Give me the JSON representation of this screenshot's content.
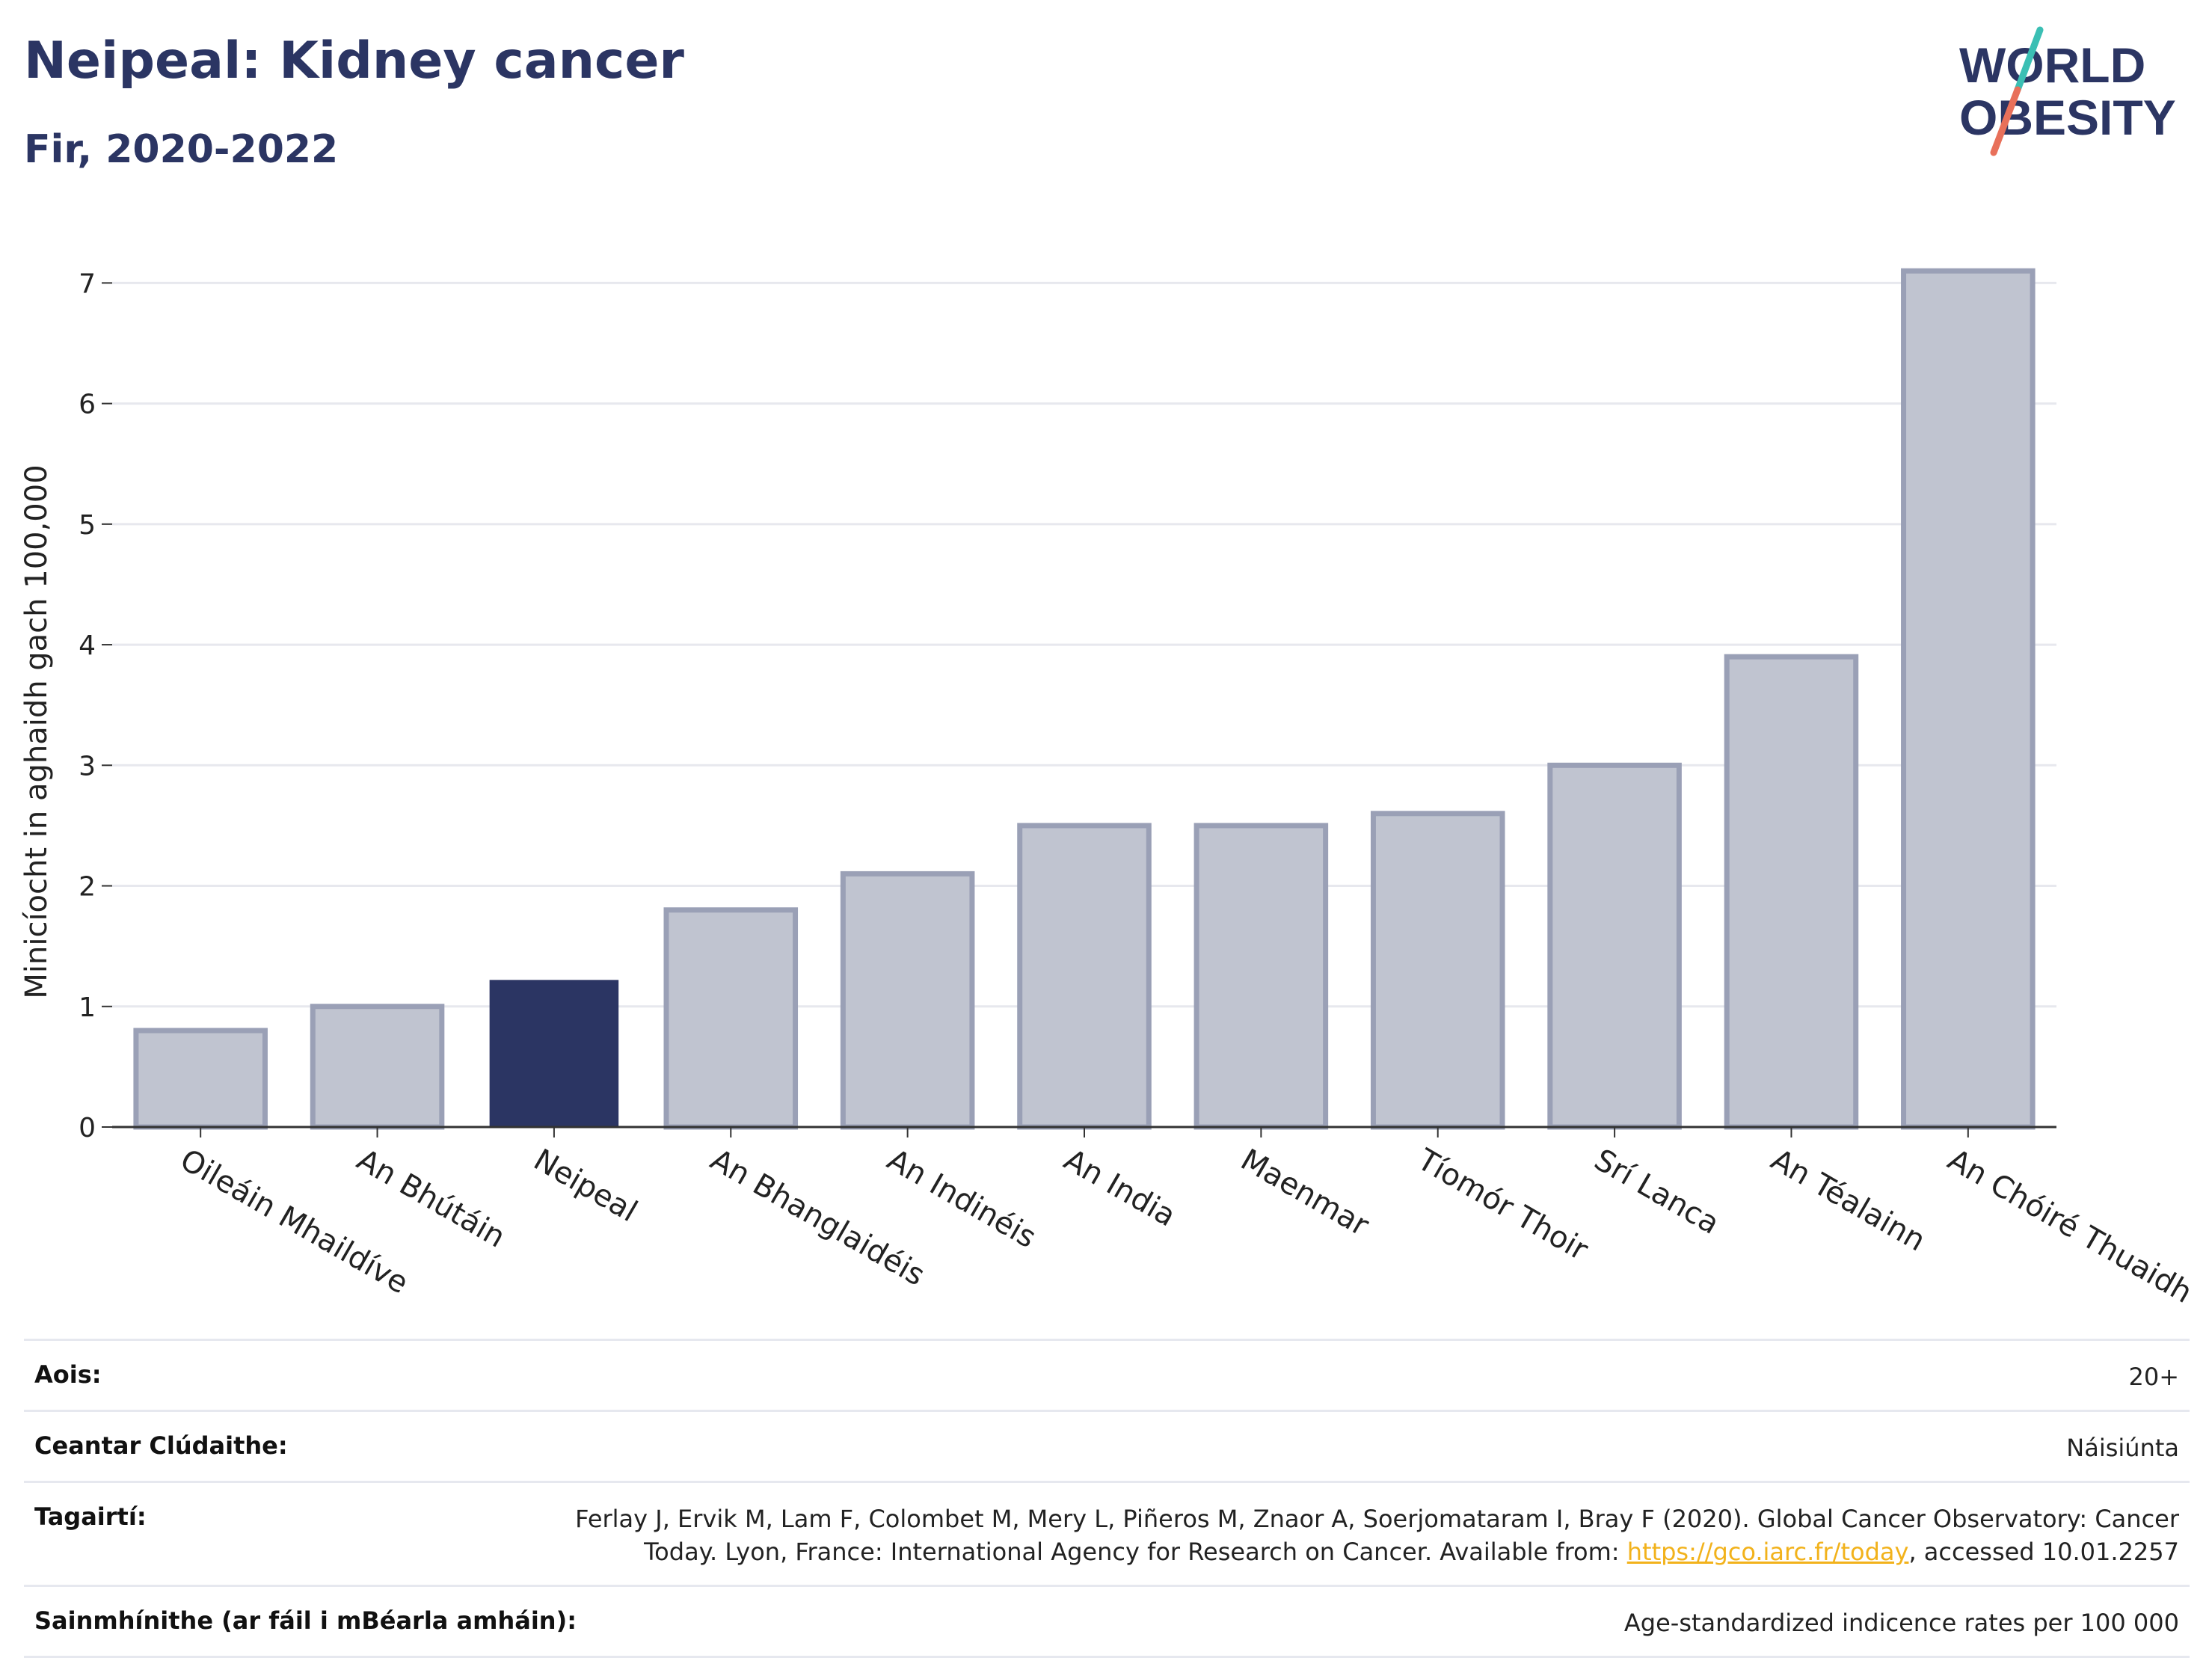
{
  "header": {
    "title": "Neipeal: Kidney cancer",
    "subtitle": "Fir, 2020-2022"
  },
  "logo": {
    "line1": "WORLD",
    "line2": "OBESITY",
    "colors": {
      "text": "#2b3563",
      "slash_top": "#3bbfb4",
      "slash_bottom": "#e8705a"
    }
  },
  "colors": {
    "bar": "#c0c4d0",
    "bar_border": "#9aa0b6",
    "highlight": "#2b3563",
    "grid": "#e7e8ee",
    "axis": "#333333"
  },
  "chart_data": {
    "type": "bar",
    "title": "",
    "xlabel": "",
    "ylabel": "Minicíocht in aghaidh gach 100,000",
    "ylim": [
      0,
      7.3
    ],
    "yticks": [
      0,
      1,
      2,
      3,
      4,
      5,
      6,
      7
    ],
    "grid": true,
    "categories": [
      "Oileáin Mhaildíve",
      "An Bhútáin",
      "Neipeal",
      "An Bhanglaidéis",
      "An Indinéis",
      "An India",
      "Maenmar",
      "Tíomór Thoir",
      "Srí Lanca",
      "An Téalainn",
      "An Chóiré Thuaidh"
    ],
    "values": [
      0.8,
      1.0,
      1.22,
      1.8,
      2.1,
      2.5,
      2.5,
      2.6,
      3.0,
      3.9,
      7.1
    ],
    "highlight_category": "Neipeal"
  },
  "meta": {
    "age_label": "Aois:",
    "age_value": "20+",
    "coverage_label": "Ceantar Clúdaithe:",
    "coverage_value": "Náisiúnta",
    "refs_label": "Tagairtí:",
    "refs_line1": "Ferlay J, Ervik M, Lam F, Colombet M, Mery L, Piñeros M, Znaor A, Soerjomataram I, Bray F (2020). Global Cancer Observatory: Cancer",
    "refs_line2_pre": "Today. Lyon, France: International Agency for Research on Cancer. Available from: ",
    "refs_link": "https://gco.iarc.fr/today",
    "refs_line2_post": ", accessed 10.01.2257",
    "defs_label": "Sainmhínithe (ar fáil i mBéarla amháin):",
    "defs_value": "Age-standardized indicence rates per 100 000"
  }
}
